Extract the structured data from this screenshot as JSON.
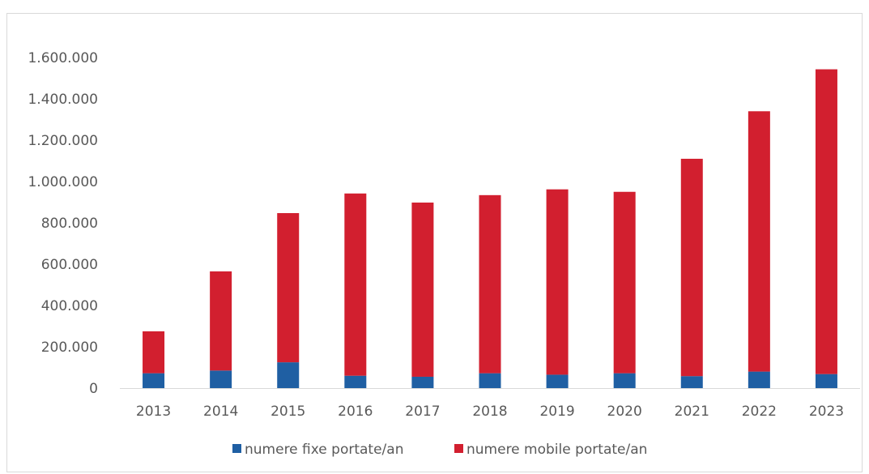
{
  "chart_data": {
    "type": "bar",
    "stacked": true,
    "title": "",
    "xlabel": "",
    "ylabel": "",
    "categories": [
      "2013",
      "2014",
      "2015",
      "2016",
      "2017",
      "2018",
      "2019",
      "2020",
      "2021",
      "2022",
      "2023"
    ],
    "series": [
      {
        "name": "numere fixe portate/an",
        "color": "#1f5fa3",
        "values": [
          72000,
          85000,
          125000,
          60000,
          55000,
          72000,
          65000,
          72000,
          58000,
          80000,
          68000
        ]
      },
      {
        "name": "numere mobile portate/an",
        "color": "#d21f2f",
        "values": [
          203000,
          480000,
          722000,
          882000,
          843000,
          862000,
          897000,
          878000,
          1052000,
          1260000,
          1475000
        ]
      }
    ],
    "ylim": [
      0,
      1600000
    ],
    "yticks": [
      0,
      200000,
      400000,
      600000,
      800000,
      1000000,
      1200000,
      1400000,
      1600000
    ],
    "ytick_labels": [
      "0",
      "200.000",
      "400.000",
      "600.000",
      "800.000",
      "1.000.000",
      "1.200.000",
      "1.400.000",
      "1.600.000"
    ],
    "grid": false,
    "legend": "bottom"
  }
}
